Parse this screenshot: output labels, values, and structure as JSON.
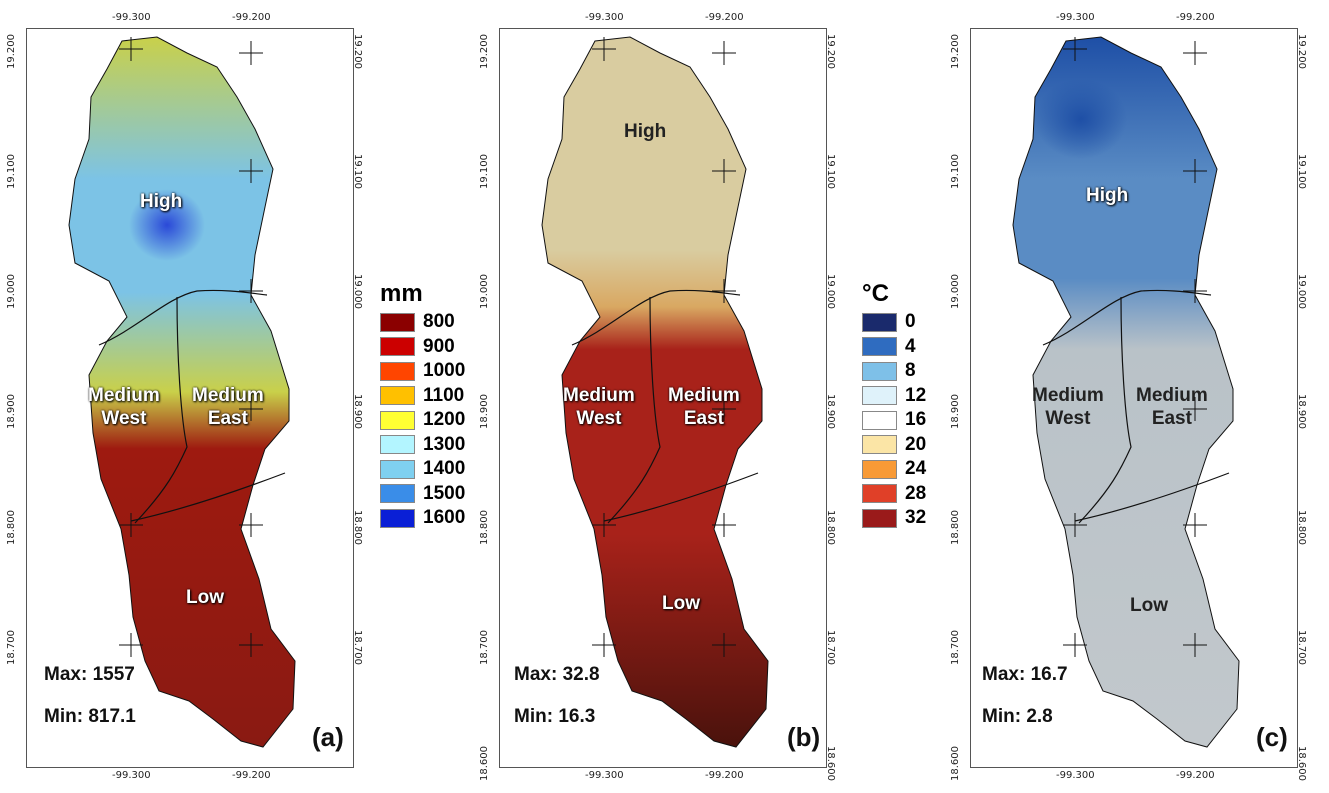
{
  "coords": {
    "lon_left": "-99.300",
    "lon_right": "-99.200",
    "lat": [
      "19.200",
      "19.100",
      "19.000",
      "18.900",
      "18.800",
      "18.700",
      "18.600"
    ]
  },
  "zones": {
    "high": "High",
    "medium_west": [
      "Medium",
      "West"
    ],
    "medium_east": [
      "Medium",
      "East"
    ],
    "low": "Low"
  },
  "panels": [
    {
      "id": "a",
      "label": "(a)",
      "max": "Max: 1557",
      "min": "Min: 817.1",
      "colors": {
        "north": "#c9d04a",
        "mid": "#7cc3e6",
        "core": "#2a49d8",
        "south": "#9e1a10",
        "deep": "#8a1a12"
      }
    },
    {
      "id": "b",
      "label": "(b)",
      "max": "Max: 32.8",
      "min": "Min: 16.3",
      "colors": {
        "north": "#d9cca0",
        "mid": "#d9a862",
        "core": "#e0b070",
        "south": "#a8221a",
        "deep": "#4a120c"
      }
    },
    {
      "id": "c",
      "label": "(c)",
      "max": "Max: 16.7",
      "min": "Min: 2.8",
      "colors": {
        "north": "#1e4fa6",
        "mid": "#5a8cc4",
        "core": "#2a5fb8",
        "south": "#b9c2c8",
        "deep": "#c2c8cc"
      }
    }
  ],
  "legend_precip": {
    "unit": "mm",
    "items": [
      {
        "label": "800",
        "color": "#8b0000"
      },
      {
        "label": "900",
        "color": "#cc0000"
      },
      {
        "label": "1000",
        "color": "#ff4500"
      },
      {
        "label": "1100",
        "color": "#ffc000"
      },
      {
        "label": "1200",
        "color": "#ffff33"
      },
      {
        "label": "1300",
        "color": "#b3f5ff"
      },
      {
        "label": "1400",
        "color": "#7fd0f0"
      },
      {
        "label": "1500",
        "color": "#3a8de8"
      },
      {
        "label": "1600",
        "color": "#0a1fd6"
      }
    ]
  },
  "legend_temp": {
    "unit": "°C",
    "items": [
      {
        "label": "0",
        "color": "#1a2a6c"
      },
      {
        "label": "4",
        "color": "#2f6cc0"
      },
      {
        "label": "8",
        "color": "#7ec0e8"
      },
      {
        "label": "12",
        "color": "#dff2fa"
      },
      {
        "label": "16",
        "color": "#ffffff"
      },
      {
        "label": "20",
        "color": "#fbe5a6"
      },
      {
        "label": "24",
        "color": "#f89a36"
      },
      {
        "label": "28",
        "color": "#e04028"
      },
      {
        "label": "32",
        "color": "#9a1a1a"
      }
    ]
  }
}
